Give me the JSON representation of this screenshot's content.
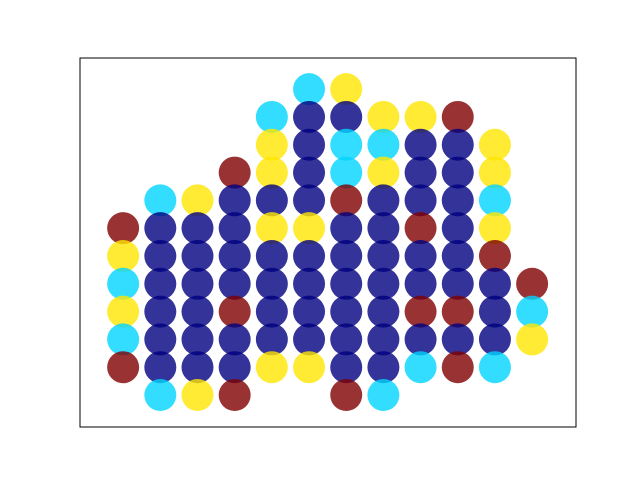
{
  "chart_data": {
    "type": "scatter",
    "x": [
      0,
      0,
      0,
      0,
      0,
      0,
      1,
      1,
      1,
      1,
      1,
      1,
      1,
      1,
      2,
      2,
      2,
      2,
      2,
      2,
      2,
      2,
      3,
      3,
      3,
      3,
      3,
      3,
      3,
      3,
      3,
      4,
      4,
      4,
      4,
      4,
      4,
      4,
      4,
      4,
      4,
      5,
      5,
      5,
      5,
      5,
      5,
      5,
      5,
      5,
      5,
      5,
      6,
      6,
      6,
      6,
      6,
      6,
      6,
      6,
      6,
      6,
      6,
      6,
      7,
      7,
      7,
      7,
      7,
      7,
      7,
      7,
      7,
      7,
      7,
      8,
      8,
      8,
      8,
      8,
      8,
      8,
      8,
      8,
      8,
      9,
      9,
      9,
      9,
      9,
      9,
      9,
      9,
      9,
      9,
      10,
      10,
      10,
      10,
      10,
      10,
      10,
      10,
      10,
      11,
      11,
      11
    ],
    "y": [
      6,
      5,
      4,
      3,
      2,
      1,
      7,
      6,
      5,
      4,
      3,
      2,
      1,
      0,
      7,
      6,
      5,
      4,
      3,
      2,
      1,
      0,
      8,
      7,
      6,
      5,
      4,
      3,
      2,
      1,
      0,
      10,
      9,
      8,
      7,
      6,
      5,
      4,
      3,
      2,
      1,
      11,
      10,
      9,
      8,
      7,
      6,
      5,
      4,
      3,
      2,
      1,
      11,
      10,
      9,
      8,
      7,
      6,
      5,
      4,
      3,
      2,
      1,
      0,
      10,
      9,
      8,
      7,
      6,
      5,
      4,
      3,
      2,
      1,
      0,
      10,
      9,
      8,
      7,
      6,
      5,
      4,
      3,
      2,
      1,
      10,
      9,
      8,
      7,
      6,
      5,
      4,
      3,
      2,
      1,
      9,
      8,
      7,
      6,
      5,
      4,
      3,
      2,
      1,
      4,
      3,
      2
    ],
    "colors": [
      "#800000",
      "#ffe600",
      "#00d4ff",
      "#ffe600",
      "#00d4ff",
      "#800000",
      "#00d4ff",
      "#000080",
      "#000080",
      "#000080",
      "#000080",
      "#000080",
      "#000080",
      "#00d4ff",
      "#ffe600",
      "#000080",
      "#000080",
      "#000080",
      "#000080",
      "#000080",
      "#000080",
      "#ffe600",
      "#800000",
      "#000080",
      "#000080",
      "#000080",
      "#000080",
      "#800000",
      "#000080",
      "#000080",
      "#800000",
      "#00d4ff",
      "#ffe600",
      "#ffe600",
      "#000080",
      "#ffe600",
      "#000080",
      "#000080",
      "#000080",
      "#000080",
      "#ffe600",
      "#00d4ff",
      "#000080",
      "#000080",
      "#000080",
      "#000080",
      "#ffe600",
      "#000080",
      "#000080",
      "#000080",
      "#000080",
      "#ffe600",
      "#ffe600",
      "#000080",
      "#00d4ff",
      "#00d4ff",
      "#800000",
      "#000080",
      "#000080",
      "#000080",
      "#000080",
      "#000080",
      "#000080",
      "#800000",
      "#ffe600",
      "#00d4ff",
      "#ffe600",
      "#000080",
      "#000080",
      "#000080",
      "#000080",
      "#000080",
      "#000080",
      "#000080",
      "#00d4ff",
      "#ffe600",
      "#000080",
      "#000080",
      "#000080",
      "#800000",
      "#000080",
      "#000080",
      "#800000",
      "#000080",
      "#00d4ff",
      "#800000",
      "#000080",
      "#000080",
      "#000080",
      "#000080",
      "#000080",
      "#000080",
      "#800000",
      "#000080",
      "#800000",
      "#ffe600",
      "#ffe600",
      "#00d4ff",
      "#ffe600",
      "#800000",
      "#000080",
      "#000080",
      "#000080",
      "#00d4ff",
      "#800000",
      "#00d4ff",
      "#ffe600"
    ],
    "xlim": [
      -1.16,
      12.18
    ],
    "ylim": [
      -1.15,
      12.12
    ]
  }
}
